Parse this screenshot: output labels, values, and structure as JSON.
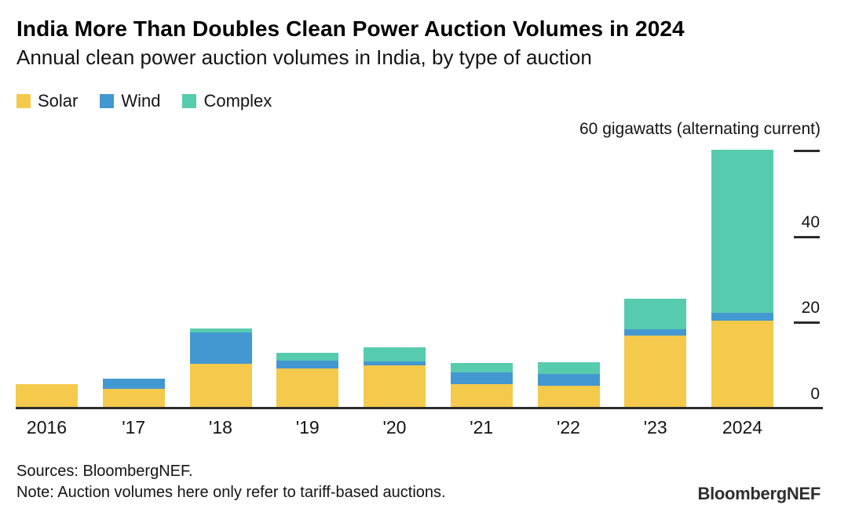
{
  "header": {
    "title": "India More Than Doubles Clean Power Auction Volumes in 2024",
    "subtitle": "Annual clean power auction volumes in India, by type of auction"
  },
  "axis": {
    "unit_label": "60 gigawatts (alternating current)",
    "yticks": [
      {
        "value": 60,
        "label": "",
        "show_dash": true
      },
      {
        "value": 40,
        "label": "40",
        "show_dash": true
      },
      {
        "value": 20,
        "label": "20",
        "show_dash": true
      },
      {
        "value": 0,
        "label": "0",
        "show_dash": false
      }
    ]
  },
  "chart_data": {
    "type": "bar",
    "stacked": true,
    "title": "India More Than Doubles Clean Power Auction Volumes in 2024",
    "subtitle": "Annual clean power auction volumes in India, by type of auction",
    "ylabel": "gigawatts (alternating current)",
    "xlabel": "",
    "ylim": [
      0,
      60
    ],
    "yticks": [
      0,
      20,
      40,
      60
    ],
    "grid": false,
    "legend_position": "top-left",
    "categories": [
      "2016",
      "'17",
      "'18",
      "'19",
      "'20",
      "'21",
      "'22",
      "'23",
      "2024"
    ],
    "series": [
      {
        "name": "Solar",
        "color": "#F4C94C",
        "values": [
          5.7,
          4.6,
          10.4,
          9.3,
          10.0,
          5.7,
          5.3,
          17.0,
          20.4
        ]
      },
      {
        "name": "Wind",
        "color": "#4398D1",
        "values": [
          0,
          2.4,
          7.3,
          1.8,
          0.9,
          2.7,
          2.7,
          1.5,
          1.8
        ]
      },
      {
        "name": "Complex",
        "color": "#57CBAD",
        "values": [
          0,
          0,
          0.9,
          1.8,
          3.3,
          2.2,
          2.7,
          7.0,
          37.9
        ]
      }
    ]
  },
  "footer": {
    "sources": "Sources: BloombergNEF.",
    "note": "Note: Auction volumes here only refer to tariff-based auctions.",
    "brand": "BloombergNEF"
  }
}
